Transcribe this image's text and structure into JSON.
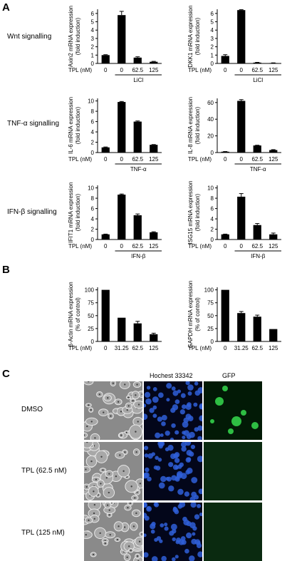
{
  "panel_letters": {
    "a": "A",
    "b": "B",
    "c": "C"
  },
  "row_labels": {
    "wnt": "Wnt signalling",
    "tnf": "TNF-α signalling",
    "ifn": "IFN-β signalling"
  },
  "panel_c": {
    "column_headers": [
      "Hochest 33342",
      "GFP"
    ],
    "rows": [
      "DMSO",
      "TPL (62.5 nM)",
      "TPL (125 nM)"
    ]
  },
  "chart_data": [
    {
      "id": "axin2",
      "type": "bar",
      "ylabel": "Axin2 mRNA expression\n(fold induction)",
      "xlabel": "TPL (nM)",
      "categories": [
        "0",
        "0",
        "62.5",
        "125"
      ],
      "values": [
        1.0,
        5.8,
        0.7,
        0.2
      ],
      "errors": [
        0.05,
        0.45,
        0.1,
        0.05
      ],
      "ylim": [
        0,
        6.5
      ],
      "yticks": [
        "0",
        "1",
        "2",
        "3",
        "4",
        "5",
        "6"
      ],
      "treatment": "LiCl"
    },
    {
      "id": "dkk1",
      "type": "bar",
      "ylabel": "DKK1 mRNA expression\n(fold induction)",
      "xlabel": "TPL (nM)",
      "categories": [
        "0",
        "0",
        "62.5",
        "125"
      ],
      "values": [
        0.9,
        6.4,
        0.1,
        0.05
      ],
      "errors": [
        0.15,
        0.05,
        0.03,
        0.02
      ],
      "ylim": [
        0,
        6.5
      ],
      "yticks": [
        "0",
        "1",
        "2",
        "3",
        "4",
        "5",
        "6"
      ],
      "treatment": "LiCl"
    },
    {
      "id": "il6",
      "type": "bar",
      "ylabel": "IL-6 mRNA expression\n(fold induction)",
      "xlabel": "TPL (nM)",
      "categories": [
        "0",
        "0",
        "62.5",
        "125"
      ],
      "values": [
        1.0,
        9.8,
        6.0,
        1.5
      ],
      "errors": [
        0.08,
        0.1,
        0.12,
        0.05
      ],
      "ylim": [
        0,
        10.5
      ],
      "yticks": [
        "0",
        "2",
        "4",
        "6",
        "8",
        "10"
      ],
      "treatment": "TNF-α"
    },
    {
      "id": "il8",
      "type": "bar",
      "ylabel": "IL-8 mRNA expression\n(fold induction)",
      "xlabel": "TPL (nM)",
      "categories": [
        "0",
        "0",
        "62.5",
        "125"
      ],
      "values": [
        1.0,
        62,
        8.5,
        3.0
      ],
      "errors": [
        0.2,
        1.5,
        0.3,
        0.5
      ],
      "ylim": [
        0,
        65
      ],
      "yticks": [
        "0",
        "20",
        "40",
        "60"
      ],
      "treatment": "TNF-α"
    },
    {
      "id": "ifit1",
      "type": "bar",
      "ylabel": "IFIT1 mRNA expression\n(fold induction)",
      "xlabel": "TPL (nM)",
      "categories": [
        "0",
        "0",
        "62.5",
        "125"
      ],
      "values": [
        1.0,
        8.7,
        4.7,
        1.4
      ],
      "errors": [
        0.05,
        0.12,
        0.25,
        0.1
      ],
      "ylim": [
        0,
        10.5
      ],
      "yticks": [
        "0",
        "2",
        "4",
        "6",
        "8",
        "10"
      ],
      "treatment": "IFN-β"
    },
    {
      "id": "isg15",
      "type": "bar",
      "ylabel": "ISG15 mRNA expression\n(fold induction)",
      "xlabel": "TPL (nM)",
      "categories": [
        "0",
        "0",
        "62.5",
        "125"
      ],
      "values": [
        1.0,
        8.3,
        2.8,
        1.0
      ],
      "errors": [
        0.05,
        0.6,
        0.3,
        0.25
      ],
      "ylim": [
        0,
        10.5
      ],
      "yticks": [
        "0",
        "2",
        "4",
        "6",
        "8",
        "10"
      ],
      "treatment": "IFN-β"
    },
    {
      "id": "bactin",
      "type": "bar",
      "ylabel": "β-Actin mRNA expression\n(% of control)",
      "xlabel": "TPL (nM)",
      "categories": [
        "0",
        "31.25",
        "62.5",
        "125"
      ],
      "values": [
        100,
        46,
        35,
        14
      ],
      "errors": [
        0,
        0,
        4,
        2
      ],
      "ylim": [
        0,
        105
      ],
      "yticks": [
        "0",
        "25",
        "50",
        "75",
        "100"
      ],
      "treatment": ""
    },
    {
      "id": "gapdh",
      "type": "bar",
      "ylabel": "GAPDH mRNA expression\n(% of control)",
      "xlabel": "TPL (nM)",
      "categories": [
        "0",
        "31.25",
        "62.5",
        "125"
      ],
      "values": [
        100,
        55,
        48,
        24
      ],
      "errors": [
        0,
        3,
        3,
        0
      ],
      "ylim": [
        0,
        105
      ],
      "yticks": [
        "0",
        "25",
        "50",
        "75",
        "100"
      ],
      "treatment": ""
    }
  ]
}
